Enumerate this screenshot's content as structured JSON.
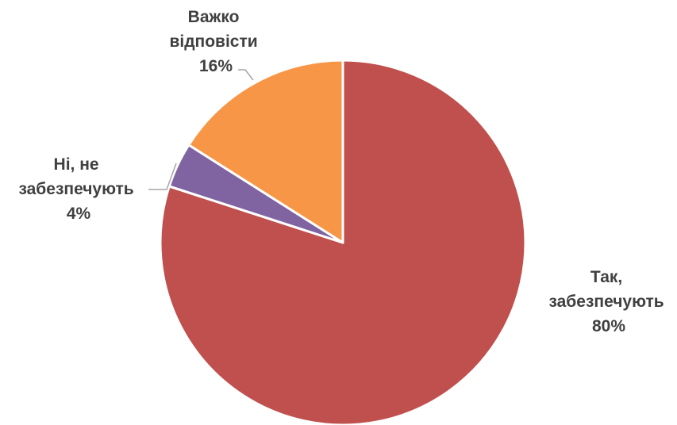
{
  "chart_data": {
    "type": "pie",
    "title": "",
    "start_angle_deg": 0,
    "direction": "clockwise",
    "slices": [
      {
        "label_lines": [
          "Так,",
          "забезпечують"
        ],
        "value": 80,
        "value_label": "80%",
        "color": "#C0504D"
      },
      {
        "label_lines": [
          "Ні, не",
          "забезпечують"
        ],
        "value": 4,
        "value_label": "4%",
        "color": "#8064A2"
      },
      {
        "label_lines": [
          "Важко",
          "відповісти"
        ],
        "value": 16,
        "value_label": "16%",
        "color": "#F79646"
      }
    ],
    "legend": "none"
  }
}
